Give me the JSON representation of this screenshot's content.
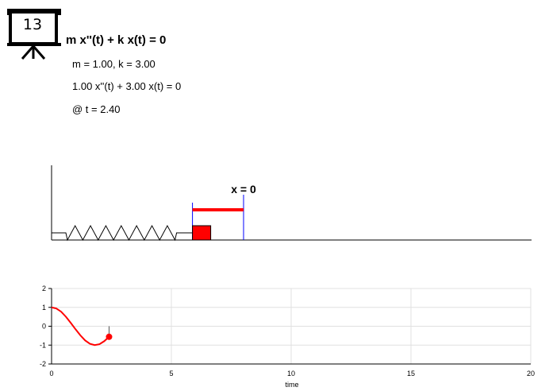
{
  "slide": {
    "number": "13"
  },
  "equation": {
    "title": "m x''(t) + k x(t) = 0",
    "params": "m = 1.00, k = 3.00",
    "instance": "1.00 x''(t) + 3.00 x(t) = 0",
    "time_label": "@ t = 2.40"
  },
  "simulation": {
    "equilibrium_label": "x = 0",
    "displacement": -0.56
  },
  "chart_data": {
    "type": "line",
    "xlabel": "time",
    "ylabel": "",
    "xlim": [
      0,
      20
    ],
    "ylim": [
      -2,
      2
    ],
    "xticks": [
      "0",
      "5",
      "10",
      "15",
      "20"
    ],
    "yticks": [
      "2",
      "1",
      "0",
      "-1",
      "-2"
    ],
    "grid": true,
    "series": [
      {
        "x": [
          0,
          0.2,
          0.4,
          0.6,
          0.8,
          1.0,
          1.2,
          1.4,
          1.6,
          1.8,
          2.0,
          2.2,
          2.4
        ],
        "y": [
          1.0,
          0.94,
          0.77,
          0.5,
          0.18,
          -0.16,
          -0.48,
          -0.75,
          -0.93,
          -1.0,
          -0.95,
          -0.79,
          -0.56
        ]
      }
    ],
    "current_point": {
      "x": 2.4,
      "y": -0.56
    },
    "color": "#ff0000"
  }
}
